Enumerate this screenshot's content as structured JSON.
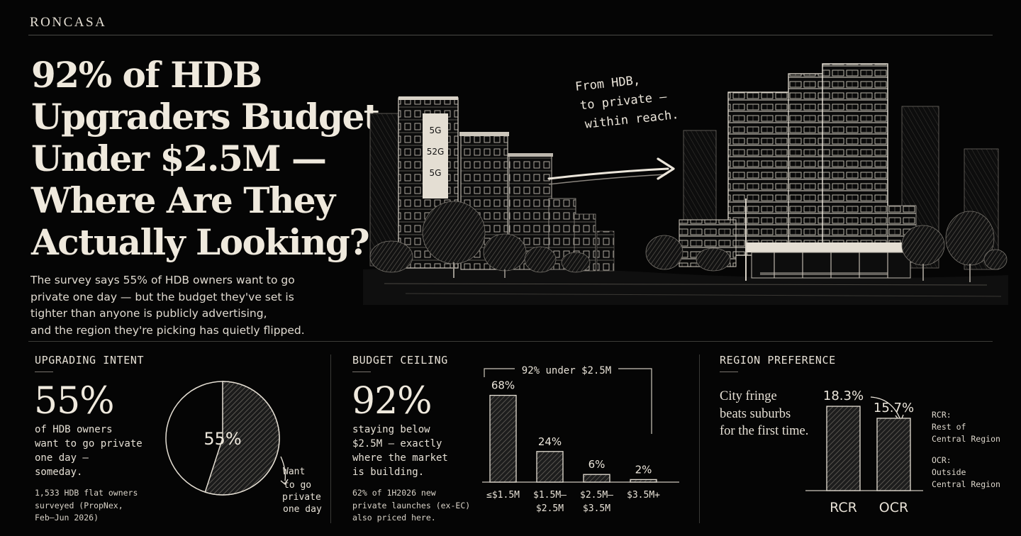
{
  "brand": "RONCASA",
  "headline": [
    "92% of HDB",
    "Upgraders Budget",
    "Under $2.5M —",
    "Where Are They",
    "Actually Looking?"
  ],
  "subcopy": [
    "The survey says 55% of HDB owners want to go",
    "private one day — but the budget they've set is",
    "tighter than anyone is publicly advertising,",
    "and the region they're picking has quietly flipped."
  ],
  "hero": {
    "note": [
      "From HDB,",
      "to private —",
      "within reach."
    ],
    "sign_text": [
      "5G",
      "52G",
      "5G"
    ]
  },
  "intent": {
    "label": "UPGRADING INTENT",
    "stat": "55%",
    "desc": [
      "of HDB owners",
      "want to go private",
      "one day —",
      "someday."
    ],
    "fine": [
      "1,533 HDB flat owners",
      "surveyed (PropNex,",
      "Feb–Jun 2026)"
    ],
    "pie_label": "55%",
    "pie_note": [
      "Want",
      "to go",
      "private",
      "one day"
    ]
  },
  "budget": {
    "label": "BUDGET CEILING",
    "stat": "92%",
    "desc": [
      "staying below",
      "$2.5M — exactly",
      "where the market",
      "is building."
    ],
    "fine": [
      "62% of 1H2026 new",
      "private launches (ex-EC)",
      "also priced here."
    ],
    "bracket_label": "92% under $2.5M"
  },
  "region": {
    "label": "REGION PREFERENCE",
    "copy": [
      "City fringe",
      "beats suburbs",
      "for the first time."
    ],
    "legend_rcr": [
      "RCR:",
      "Rest of",
      "Central Region"
    ],
    "legend_ocr": [
      "OCR:",
      "Outside",
      "Central Region"
    ]
  },
  "chart_data": [
    {
      "type": "pie",
      "categories": [
        "Want to go private one day",
        "Other"
      ],
      "values": [
        55,
        45
      ],
      "units": "%"
    },
    {
      "type": "bar",
      "categories": [
        "≤$1.5M",
        "$1.5M–$2.5M",
        "$2.5M–$3.5M",
        "$3.5M+"
      ],
      "tick_labels": [
        [
          "≤$1.5M"
        ],
        [
          "$1.5M–",
          "$2.5M"
        ],
        [
          "$2.5M–",
          "$3.5M"
        ],
        [
          "$3.5M+"
        ]
      ],
      "values": [
        68,
        24,
        6,
        2
      ],
      "value_labels": [
        "68%",
        "24%",
        "6%",
        "2%"
      ],
      "units": "%",
      "annotation": "92% under $2.5M",
      "ylim": [
        0,
        100
      ]
    },
    {
      "type": "bar",
      "categories": [
        "RCR",
        "OCR"
      ],
      "values": [
        18.3,
        15.7
      ],
      "value_labels": [
        "18.3%",
        "15.7%"
      ],
      "units": "%",
      "ylim": [
        0,
        20
      ]
    }
  ],
  "colors": {
    "background": "#050505",
    "ink": "#ece6db",
    "rule": "#4a4a46",
    "bar_fill": "#2b2b2b"
  }
}
